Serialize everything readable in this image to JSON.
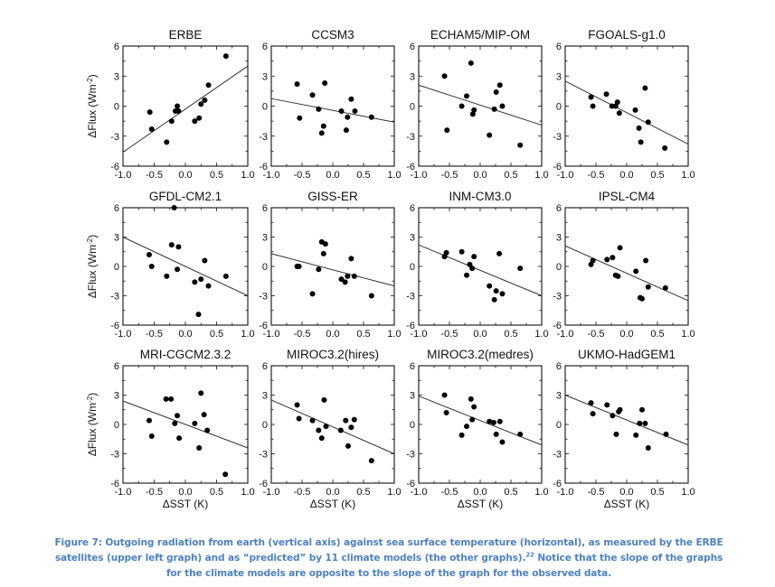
{
  "caption": {
    "part1": "Figure 7: Outgoing radiation from earth (vertical axis) against sea surface temperature (horizontal), as measured by the ERBE satellites (upper left graph) and as “predicted” by 11 climate models (the other graphs).",
    "footnote": "22",
    "part2": " Notice that the slope of the graphs for the climate models are opposite to the slope of the graph for the observed data."
  },
  "chart_data": {
    "type": "scatter",
    "layout": "3x4 grid of scatter panels with linear fit lines",
    "xlabel": "ΔSST (K)",
    "ylabel": "ΔFlux (Wm⁻²)",
    "xlim": [
      -1.0,
      1.0
    ],
    "ylim": [
      -6,
      6
    ],
    "xticks": [
      "-1.0",
      "-0.5",
      "0.0",
      "0.5",
      "1.0"
    ],
    "yticks": [
      "6",
      "3",
      "0",
      "-3",
      "-6"
    ],
    "grid": false,
    "panels": [
      {
        "title": "ERBE",
        "fit": [
          [
            -1.0,
            -4.6
          ],
          [
            1.0,
            4.0
          ]
        ],
        "points": [
          [
            -0.57,
            -0.6
          ],
          [
            -0.54,
            -2.3
          ],
          [
            -0.3,
            -3.6
          ],
          [
            -0.22,
            -1.5
          ],
          [
            -0.16,
            -0.5
          ],
          [
            -0.13,
            0.0
          ],
          [
            -0.11,
            -0.5
          ],
          [
            0.15,
            -1.5
          ],
          [
            0.22,
            -1.2
          ],
          [
            0.25,
            0.2
          ],
          [
            0.31,
            0.6
          ],
          [
            0.37,
            2.1
          ],
          [
            0.65,
            5.0
          ]
        ]
      },
      {
        "title": "CCSM3",
        "fit": [
          [
            -1.0,
            0.75
          ],
          [
            1.0,
            -1.6
          ]
        ],
        "points": [
          [
            -0.58,
            2.2
          ],
          [
            -0.54,
            -1.2
          ],
          [
            -0.33,
            1.1
          ],
          [
            -0.23,
            -0.3
          ],
          [
            -0.18,
            -2.7
          ],
          [
            -0.15,
            -2.0
          ],
          [
            -0.13,
            2.3
          ],
          [
            0.14,
            -0.5
          ],
          [
            0.22,
            -2.4
          ],
          [
            0.24,
            -1.1
          ],
          [
            0.3,
            0.7
          ],
          [
            0.36,
            -0.5
          ],
          [
            0.63,
            -1.1
          ]
        ]
      },
      {
        "title": "ECHAM5/MIP-OM",
        "fit": [
          [
            -1.0,
            2.1
          ],
          [
            1.0,
            -1.9
          ]
        ],
        "points": [
          [
            -0.58,
            3.0
          ],
          [
            -0.54,
            -2.4
          ],
          [
            -0.3,
            0.0
          ],
          [
            -0.22,
            1.0
          ],
          [
            -0.15,
            4.3
          ],
          [
            -0.12,
            -0.8
          ],
          [
            -0.1,
            -0.4
          ],
          [
            0.15,
            -2.9
          ],
          [
            0.23,
            -0.3
          ],
          [
            0.26,
            1.4
          ],
          [
            0.32,
            2.1
          ],
          [
            0.36,
            0.0
          ],
          [
            0.65,
            -3.9
          ]
        ]
      },
      {
        "title": "FGOALS-g1.0",
        "fit": [
          [
            -1.0,
            2.5
          ],
          [
            1.0,
            -3.8
          ]
        ],
        "points": [
          [
            -0.58,
            0.9
          ],
          [
            -0.55,
            0.0
          ],
          [
            -0.33,
            1.2
          ],
          [
            -0.24,
            0.0
          ],
          [
            -0.18,
            0.0
          ],
          [
            -0.15,
            0.4
          ],
          [
            -0.12,
            -0.7
          ],
          [
            0.14,
            -0.4
          ],
          [
            0.2,
            -2.2
          ],
          [
            0.23,
            -3.6
          ],
          [
            0.3,
            1.8
          ],
          [
            0.35,
            -1.6
          ],
          [
            0.62,
            -4.2
          ]
        ]
      },
      {
        "title": "GFDL-CM2.1",
        "fit": [
          [
            -1.0,
            3.0
          ],
          [
            1.0,
            -3.0
          ]
        ],
        "points": [
          [
            -0.58,
            1.2
          ],
          [
            -0.54,
            0.0
          ],
          [
            -0.3,
            -1.0
          ],
          [
            -0.22,
            2.2
          ],
          [
            -0.18,
            6.0
          ],
          [
            -0.13,
            -0.3
          ],
          [
            -0.11,
            2.0
          ],
          [
            0.15,
            -1.6
          ],
          [
            0.21,
            -4.9
          ],
          [
            0.25,
            -1.3
          ],
          [
            0.31,
            0.6
          ],
          [
            0.37,
            -2.0
          ],
          [
            0.65,
            -1.0
          ]
        ]
      },
      {
        "title": "GISS-ER",
        "fit": [
          [
            -1.0,
            1.3
          ],
          [
            1.0,
            -2.0
          ]
        ],
        "points": [
          [
            -0.58,
            0.0
          ],
          [
            -0.55,
            0.0
          ],
          [
            -0.33,
            -2.8
          ],
          [
            -0.23,
            -0.3
          ],
          [
            -0.18,
            2.5
          ],
          [
            -0.15,
            1.3
          ],
          [
            -0.12,
            2.3
          ],
          [
            0.14,
            -1.3
          ],
          [
            0.2,
            -1.6
          ],
          [
            0.24,
            -1.0
          ],
          [
            0.3,
            0.8
          ],
          [
            0.35,
            -1.0
          ],
          [
            0.63,
            -3.0
          ]
        ]
      },
      {
        "title": "INM-CM3.0",
        "fit": [
          [
            -1.0,
            2.2
          ],
          [
            1.0,
            -3.0
          ]
        ],
        "points": [
          [
            -0.58,
            1.0
          ],
          [
            -0.55,
            1.4
          ],
          [
            -0.3,
            1.5
          ],
          [
            -0.22,
            -0.9
          ],
          [
            -0.17,
            0.2
          ],
          [
            -0.13,
            -0.2
          ],
          [
            -0.1,
            1.0
          ],
          [
            0.15,
            -2.0
          ],
          [
            0.23,
            -3.4
          ],
          [
            0.26,
            -2.5
          ],
          [
            0.31,
            1.3
          ],
          [
            0.36,
            -2.8
          ],
          [
            0.65,
            -0.2
          ]
        ]
      },
      {
        "title": "IPSL-CM4",
        "fit": [
          [
            -1.0,
            2.1
          ],
          [
            1.0,
            -3.5
          ]
        ],
        "points": [
          [
            -0.58,
            0.2
          ],
          [
            -0.55,
            0.6
          ],
          [
            -0.32,
            0.7
          ],
          [
            -0.23,
            0.9
          ],
          [
            -0.18,
            -0.9
          ],
          [
            -0.14,
            -1.0
          ],
          [
            -0.11,
            1.9
          ],
          [
            0.15,
            -0.5
          ],
          [
            0.22,
            -3.2
          ],
          [
            0.25,
            -3.3
          ],
          [
            0.31,
            0.6
          ],
          [
            0.35,
            -2.1
          ],
          [
            0.63,
            -2.2
          ]
        ]
      },
      {
        "title": "MRI-CGCM2.3.2",
        "fit": [
          [
            -1.0,
            2.4
          ],
          [
            1.0,
            -2.4
          ]
        ],
        "points": [
          [
            -0.58,
            0.4
          ],
          [
            -0.54,
            -1.2
          ],
          [
            -0.31,
            2.6
          ],
          [
            -0.23,
            2.6
          ],
          [
            -0.17,
            0.1
          ],
          [
            -0.13,
            0.9
          ],
          [
            -0.1,
            -1.4
          ],
          [
            0.15,
            0.1
          ],
          [
            0.22,
            -2.4
          ],
          [
            0.25,
            3.2
          ],
          [
            0.3,
            1.0
          ],
          [
            0.35,
            -0.6
          ],
          [
            0.64,
            -5.1
          ]
        ]
      },
      {
        "title": "MIROC3.2(hires)",
        "fit": [
          [
            -1.0,
            2.5
          ],
          [
            1.0,
            -3.0
          ]
        ],
        "points": [
          [
            -0.58,
            2.0
          ],
          [
            -0.55,
            0.6
          ],
          [
            -0.33,
            0.4
          ],
          [
            -0.23,
            -0.6
          ],
          [
            -0.18,
            -1.4
          ],
          [
            -0.14,
            2.5
          ],
          [
            -0.11,
            -0.2
          ],
          [
            0.13,
            -0.6
          ],
          [
            0.21,
            0.4
          ],
          [
            0.25,
            -2.2
          ],
          [
            0.3,
            -0.3
          ],
          [
            0.35,
            0.5
          ],
          [
            0.63,
            -3.7
          ]
        ]
      },
      {
        "title": "MIROC3.2(medres)",
        "fit": [
          [
            -1.0,
            2.9
          ],
          [
            1.0,
            -2.1
          ]
        ],
        "points": [
          [
            -0.58,
            3.0
          ],
          [
            -0.55,
            1.2
          ],
          [
            -0.3,
            -1.1
          ],
          [
            -0.22,
            -0.2
          ],
          [
            -0.15,
            2.6
          ],
          [
            -0.13,
            0.5
          ],
          [
            -0.1,
            1.8
          ],
          [
            0.15,
            0.3
          ],
          [
            0.22,
            0.2
          ],
          [
            0.26,
            -1.0
          ],
          [
            0.32,
            0.3
          ],
          [
            0.36,
            -1.8
          ],
          [
            0.65,
            -1.0
          ]
        ]
      },
      {
        "title": "UKMO-HadGEM1",
        "fit": [
          [
            -1.0,
            3.0
          ],
          [
            1.0,
            -2.1
          ]
        ],
        "points": [
          [
            -0.58,
            2.2
          ],
          [
            -0.55,
            1.1
          ],
          [
            -0.32,
            2.0
          ],
          [
            -0.23,
            0.9
          ],
          [
            -0.17,
            -1.0
          ],
          [
            -0.13,
            1.3
          ],
          [
            -0.11,
            1.5
          ],
          [
            0.15,
            -1.1
          ],
          [
            0.21,
            0.1
          ],
          [
            0.25,
            1.5
          ],
          [
            0.3,
            0.1
          ],
          [
            0.35,
            -2.4
          ],
          [
            0.64,
            -1.0
          ]
        ]
      }
    ]
  }
}
